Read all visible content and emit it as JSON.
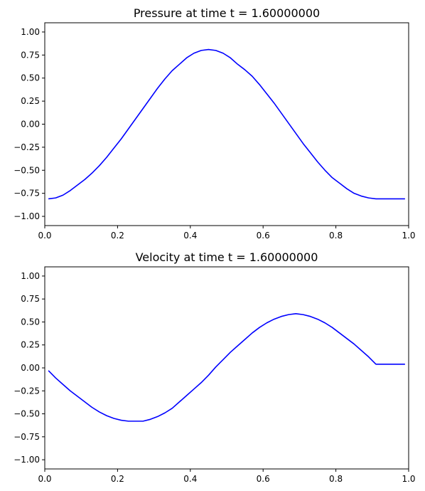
{
  "chart_data": [
    {
      "type": "line",
      "title": "Pressure at time t =     1.60000000",
      "xlim": [
        0,
        1
      ],
      "ylim": [
        -1.1,
        1.1
      ],
      "xticks": [
        "0.0",
        "0.2",
        "0.4",
        "0.6",
        "0.8",
        "1.0"
      ],
      "yticks": [
        "−1.00",
        "−0.75",
        "−0.50",
        "−0.25",
        "0.00",
        "0.25",
        "0.50",
        "0.75",
        "1.00"
      ],
      "grid": false,
      "series": [
        {
          "color": "#0000ff",
          "x": [
            0.01,
            0.03,
            0.05,
            0.07,
            0.09,
            0.11,
            0.13,
            0.15,
            0.17,
            0.19,
            0.21,
            0.23,
            0.25,
            0.27,
            0.29,
            0.31,
            0.33,
            0.35,
            0.37,
            0.39,
            0.41,
            0.43,
            0.45,
            0.47,
            0.49,
            0.51,
            0.53,
            0.55,
            0.57,
            0.59,
            0.61,
            0.63,
            0.65,
            0.67,
            0.69,
            0.71,
            0.73,
            0.75,
            0.77,
            0.79,
            0.81,
            0.83,
            0.85,
            0.87,
            0.89,
            0.91,
            0.93,
            0.95,
            0.97,
            0.99
          ],
          "y": [
            -0.81,
            -0.8,
            -0.77,
            -0.72,
            -0.66,
            -0.6,
            -0.53,
            -0.45,
            -0.36,
            -0.26,
            -0.16,
            -0.05,
            0.06,
            0.17,
            0.28,
            0.39,
            0.49,
            0.58,
            0.65,
            0.72,
            0.77,
            0.8,
            0.81,
            0.8,
            0.77,
            0.72,
            0.65,
            0.59,
            0.52,
            0.43,
            0.33,
            0.23,
            0.12,
            0.01,
            -0.1,
            -0.21,
            -0.31,
            -0.41,
            -0.5,
            -0.58,
            -0.64,
            -0.7,
            -0.75,
            -0.78,
            -0.8,
            -0.81,
            -0.81,
            -0.81,
            -0.81,
            -0.81
          ]
        }
      ]
    },
    {
      "type": "line",
      "title": "Velocity at time t =     1.60000000",
      "xlim": [
        0,
        1
      ],
      "ylim": [
        -1.1,
        1.1
      ],
      "xticks": [
        "0.0",
        "0.2",
        "0.4",
        "0.6",
        "0.8",
        "1.0"
      ],
      "yticks": [
        "−1.00",
        "−0.75",
        "−0.50",
        "−0.25",
        "0.00",
        "0.25",
        "0.50",
        "0.75",
        "1.00"
      ],
      "grid": false,
      "series": [
        {
          "color": "#0000ff",
          "x": [
            0.01,
            0.03,
            0.05,
            0.07,
            0.09,
            0.11,
            0.13,
            0.15,
            0.17,
            0.19,
            0.21,
            0.23,
            0.25,
            0.27,
            0.29,
            0.31,
            0.33,
            0.35,
            0.37,
            0.39,
            0.41,
            0.43,
            0.45,
            0.47,
            0.49,
            0.51,
            0.53,
            0.55,
            0.57,
            0.59,
            0.61,
            0.63,
            0.65,
            0.67,
            0.69,
            0.71,
            0.73,
            0.75,
            0.77,
            0.79,
            0.81,
            0.83,
            0.85,
            0.87,
            0.89,
            0.91,
            0.93,
            0.95,
            0.97,
            0.99
          ],
          "y": [
            -0.03,
            -0.11,
            -0.18,
            -0.25,
            -0.31,
            -0.37,
            -0.43,
            -0.48,
            -0.52,
            -0.55,
            -0.57,
            -0.58,
            -0.58,
            -0.58,
            -0.56,
            -0.53,
            -0.49,
            -0.44,
            -0.37,
            -0.3,
            -0.23,
            -0.16,
            -0.08,
            0.01,
            0.09,
            0.17,
            0.24,
            0.31,
            0.38,
            0.44,
            0.49,
            0.53,
            0.56,
            0.58,
            0.59,
            0.58,
            0.56,
            0.53,
            0.49,
            0.44,
            0.38,
            0.32,
            0.26,
            0.19,
            0.12,
            0.04,
            0.04,
            0.04,
            0.04,
            0.04
          ]
        }
      ]
    }
  ]
}
